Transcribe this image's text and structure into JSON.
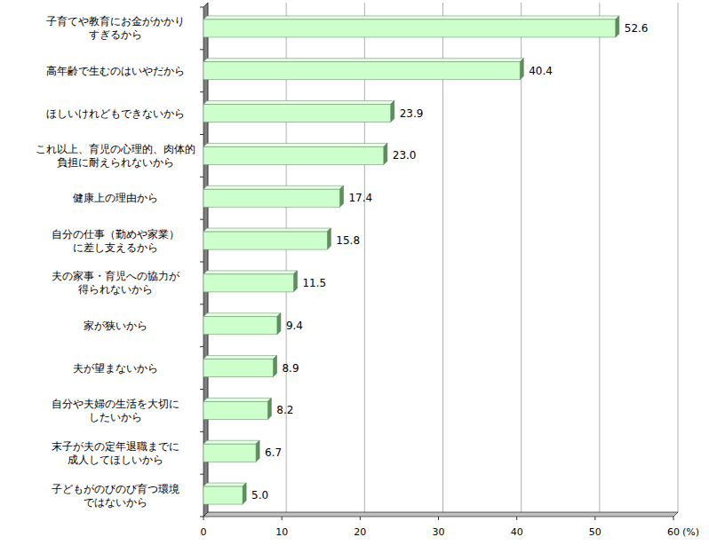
{
  "chart_data": {
    "type": "bar",
    "orientation": "horizontal",
    "categories": [
      "子育てや教育にお金がかかり\nすぎるから",
      "高年齢で生むのはいやだから",
      "ほしいけれどもできないから",
      "これ以上、育児の心理的、肉体的\n負担に耐えられないから",
      "健康上の理由から",
      "自分の仕事（勤めや家業）\nに差し支えるから",
      "夫の家事・育児への協力が\n得られないから",
      "家が狭いから",
      "夫が望まないから",
      "自分や夫婦の生活を大切に\nしたいから",
      "末子が夫の定年退職までに\n成人してほしいから",
      "子どもがのびのび育つ環境\nではないから"
    ],
    "values": [
      52.6,
      40.4,
      23.9,
      23.0,
      17.4,
      15.8,
      11.5,
      9.4,
      8.9,
      8.2,
      6.7,
      5.0
    ],
    "value_labels": [
      "52.6",
      "40.4",
      "23.9",
      "23.0",
      "17.4",
      "15.8",
      "11.5",
      "9.4",
      "8.9",
      "8.2",
      "6.7",
      "5.0"
    ],
    "color": "#ccffcc",
    "xlim": [
      0,
      60
    ],
    "xticks": [
      0,
      10,
      20,
      30,
      40,
      50,
      60
    ],
    "xlabel": "(%)",
    "grid": true,
    "data_labels": true
  }
}
